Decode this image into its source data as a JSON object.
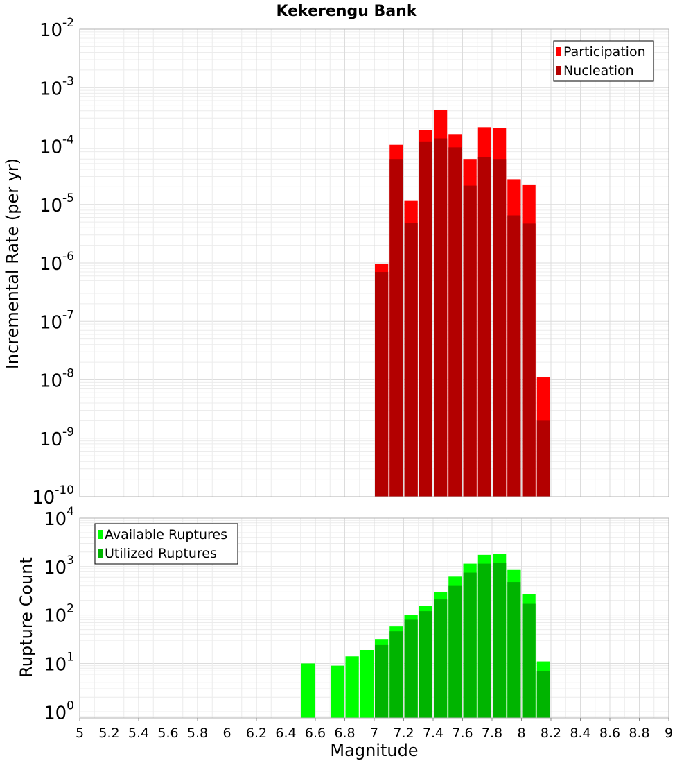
{
  "chart_data": [
    {
      "type": "bar",
      "title": "Kekerengu Bank",
      "xlabel": "",
      "ylabel": "Incremental Rate (per yr)",
      "xlim": [
        5,
        9
      ],
      "ylim": [
        1e-10,
        0.01
      ],
      "yscale": "log",
      "grid": true,
      "legend_position": "top-right",
      "bin_width": 0.1,
      "series": [
        {
          "name": "Participation",
          "color": "#ff0000",
          "x": [
            7.05,
            7.15,
            7.25,
            7.35,
            7.45,
            7.55,
            7.65,
            7.75,
            7.85,
            7.95,
            8.05,
            8.15
          ],
          "values": [
            9.5e-07,
            0.000105,
            1.15e-05,
            0.00019,
            0.00042,
            0.00016,
            6e-05,
            0.00021,
            0.000205,
            2.7e-05,
            2.2e-05,
            1.1e-08
          ]
        },
        {
          "name": "Nucleation",
          "color": "#b30000",
          "x": [
            7.05,
            7.15,
            7.25,
            7.35,
            7.45,
            7.55,
            7.65,
            7.75,
            7.85,
            7.95,
            8.05,
            8.15
          ],
          "values": [
            7e-07,
            6e-05,
            4.8e-06,
            0.00012,
            0.000135,
            9.5e-05,
            2.1e-05,
            6.5e-05,
            6e-05,
            6.5e-06,
            4.7e-06,
            2e-09
          ]
        }
      ]
    },
    {
      "type": "bar",
      "title": "",
      "xlabel": "Magnitude",
      "ylabel": "Rupture Count",
      "xlim": [
        5,
        9
      ],
      "ylim": [
        0.75,
        10000
      ],
      "yscale": "log",
      "grid": true,
      "legend_position": "top-left",
      "bin_width": 0.1,
      "x_ticks": [
        "5",
        "5.2",
        "5.4",
        "5.6",
        "5.8",
        "6",
        "6.2",
        "6.4",
        "6.6",
        "6.8",
        "7",
        "7.2",
        "7.4",
        "7.6",
        "7.8",
        "8",
        "8.2",
        "8.4",
        "8.6",
        "8.8",
        "9"
      ],
      "series": [
        {
          "name": "Available Ruptures",
          "color": "#00ff00",
          "x": [
            6.55,
            6.75,
            6.85,
            6.95,
            7.05,
            7.15,
            7.25,
            7.35,
            7.45,
            7.55,
            7.65,
            7.75,
            7.85,
            7.95,
            8.05,
            8.15
          ],
          "values": [
            10,
            9,
            14,
            19,
            32,
            58,
            100,
            155,
            300,
            620,
            1150,
            1750,
            1800,
            850,
            270,
            11
          ]
        },
        {
          "name": "Utilized Ruptures",
          "color": "#00b400",
          "x": [
            7.05,
            7.15,
            7.25,
            7.35,
            7.45,
            7.55,
            7.65,
            7.75,
            7.85,
            7.95,
            8.05,
            8.15
          ],
          "values": [
            24,
            46,
            80,
            120,
            210,
            400,
            750,
            1150,
            1200,
            480,
            170,
            7
          ]
        }
      ]
    }
  ]
}
